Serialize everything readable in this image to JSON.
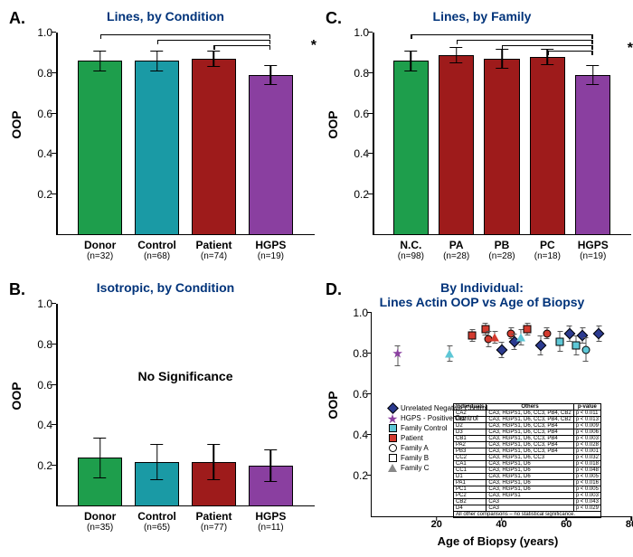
{
  "palette": {
    "donor": "#1e9e4c",
    "control": "#1a9aa5",
    "patient": "#9e1b1b",
    "hgps": "#8a3fa0",
    "title": "#00337a"
  },
  "panelA": {
    "label": "A.",
    "title": "Lines, by Condition",
    "ylabel": "OOP",
    "ylim": [
      0,
      1.0
    ],
    "yticks": [
      0.2,
      0.4,
      0.6,
      0.8,
      1.0
    ],
    "categories": [
      "Donor",
      "Control",
      "Patient",
      "HGPS"
    ],
    "n": [
      32,
      68,
      74,
      19
    ],
    "values": [
      0.86,
      0.86,
      0.87,
      0.79
    ],
    "err": [
      0.05,
      0.05,
      0.04,
      0.05
    ],
    "colors": [
      "#1e9e4c",
      "#1a9aa5",
      "#9e1b1b",
      "#8a3fa0"
    ],
    "sig_star": "*"
  },
  "panelB": {
    "label": "B.",
    "title": "Isotropic, by Condition",
    "ylabel": "OOP",
    "ylim": [
      0,
      1.0
    ],
    "yticks": [
      0.2,
      0.4,
      0.6,
      0.8,
      1.0
    ],
    "categories": [
      "Donor",
      "Control",
      "Patient",
      "HGPS"
    ],
    "n": [
      35,
      65,
      77,
      11
    ],
    "values": [
      0.24,
      0.22,
      0.22,
      0.2
    ],
    "err": [
      0.1,
      0.09,
      0.09,
      0.08
    ],
    "colors": [
      "#1e9e4c",
      "#1a9aa5",
      "#9e1b1b",
      "#8a3fa0"
    ],
    "note": "No Significance"
  },
  "panelC": {
    "label": "C.",
    "title": "Lines, by Family",
    "ylabel": "OOP",
    "ylim": [
      0,
      1.0
    ],
    "yticks": [
      0.2,
      0.4,
      0.6,
      0.8,
      1.0
    ],
    "categories": [
      "N.C.",
      "PA",
      "PB",
      "PC",
      "HGPS"
    ],
    "n": [
      98,
      28,
      28,
      18,
      19
    ],
    "values": [
      0.86,
      0.89,
      0.87,
      0.88,
      0.79
    ],
    "err": [
      0.05,
      0.04,
      0.05,
      0.04,
      0.05
    ],
    "colors": [
      "#1e9e4c",
      "#9e1b1b",
      "#9e1b1b",
      "#9e1b1b",
      "#8a3fa0"
    ],
    "sig_star": "*"
  },
  "panelD": {
    "label": "D.",
    "title_l1": "By Individual:",
    "title_l2": "Lines Actin OOP vs Age of Biopsy",
    "ylabel": "OOP",
    "xlabel": "Age of Biopsy (years)",
    "ylim": [
      0,
      1.0
    ],
    "yticks": [
      0.2,
      0.4,
      0.6,
      0.8,
      1.0
    ],
    "xlim": [
      0,
      80
    ],
    "xticks": [
      20,
      40,
      60,
      80
    ],
    "legend": [
      {
        "shape": "diamond",
        "fill": "#2b3a8f",
        "label": "Unrelated Negative Control"
      },
      {
        "shape": "star",
        "fill": "#8a3fa0",
        "label": "HGPS - Positive Control"
      },
      {
        "shape": "square",
        "fill": "#5ec7d6",
        "label": "Family Control"
      },
      {
        "shape": "square",
        "fill": "#d33b2f",
        "label": "Patient"
      },
      {
        "shape": "circle",
        "fill": "none",
        "label": "Family A"
      },
      {
        "shape": "square",
        "fill": "none",
        "label": "Family B"
      },
      {
        "shape": "triangle",
        "fill": "none",
        "label": "Family C"
      }
    ],
    "points": [
      {
        "x": 8,
        "y": 0.79,
        "e": 0.05,
        "shape": "star",
        "fill": "#8a3fa0"
      },
      {
        "x": 24,
        "y": 0.8,
        "e": 0.04,
        "shape": "triangle",
        "fill": "#5ec7d6"
      },
      {
        "x": 31,
        "y": 0.89,
        "e": 0.03,
        "shape": "square",
        "fill": "#d33b2f"
      },
      {
        "x": 35,
        "y": 0.92,
        "e": 0.03,
        "shape": "square",
        "fill": "#d33b2f"
      },
      {
        "x": 36,
        "y": 0.87,
        "e": 0.04,
        "shape": "circle",
        "fill": "#d33b2f"
      },
      {
        "x": 38,
        "y": 0.88,
        "e": 0.03,
        "shape": "triangle",
        "fill": "#d33b2f"
      },
      {
        "x": 40,
        "y": 0.82,
        "e": 0.04,
        "shape": "diamond",
        "fill": "#2b3a8f"
      },
      {
        "x": 43,
        "y": 0.9,
        "e": 0.03,
        "shape": "circle",
        "fill": "#d33b2f"
      },
      {
        "x": 44,
        "y": 0.86,
        "e": 0.04,
        "shape": "diamond",
        "fill": "#2b3a8f"
      },
      {
        "x": 46,
        "y": 0.88,
        "e": 0.04,
        "shape": "triangle",
        "fill": "#5ec7d6"
      },
      {
        "x": 48,
        "y": 0.92,
        "e": 0.03,
        "shape": "square",
        "fill": "#d33b2f"
      },
      {
        "x": 52,
        "y": 0.84,
        "e": 0.05,
        "shape": "diamond",
        "fill": "#2b3a8f"
      },
      {
        "x": 54,
        "y": 0.9,
        "e": 0.03,
        "shape": "circle",
        "fill": "#d33b2f"
      },
      {
        "x": 58,
        "y": 0.86,
        "e": 0.05,
        "shape": "square",
        "fill": "#5ec7d6"
      },
      {
        "x": 61,
        "y": 0.9,
        "e": 0.04,
        "shape": "diamond",
        "fill": "#2b3a8f"
      },
      {
        "x": 63,
        "y": 0.84,
        "e": 0.05,
        "shape": "square",
        "fill": "#5ec7d6"
      },
      {
        "x": 65,
        "y": 0.89,
        "e": 0.04,
        "shape": "diamond",
        "fill": "#2b3a8f"
      },
      {
        "x": 66,
        "y": 0.82,
        "e": 0.06,
        "shape": "circle",
        "fill": "#5ec7d6"
      },
      {
        "x": 70,
        "y": 0.9,
        "e": 0.04,
        "shape": "diamond",
        "fill": "#2b3a8f"
      }
    ],
    "pvalue_table": {
      "header": [
        "Individuals",
        "Others",
        "p-value"
      ],
      "rows": [
        [
          "CA2",
          "CA3, HGPS1, D6, CC3, PB4, CB2",
          "p < 0.011"
        ],
        [
          "PB2",
          "CA3, HGPS1, D6, CC3, PB4, CB2",
          "p < 0.013"
        ],
        [
          "D2",
          "CA3, HGPS1, D6, CC3, PB4",
          "p < 0.009"
        ],
        [
          "D3",
          "CA3, HGPS1, D6, CC3, PB4",
          "p < 0.006"
        ],
        [
          "CB1",
          "CA3, HGPS1, D6, CC3, PB4",
          "p < 0.003"
        ],
        [
          "PA2",
          "CA3, HGPS1, D6, CC3, PB4",
          "p < 0.028"
        ],
        [
          "PB3",
          "CA3, HGPS1, D6, CC3, PB4",
          "p < 0.001"
        ],
        [
          "CC2",
          "CA3, HGPS1, D6, CC3",
          "p < 0.032"
        ],
        [
          "CA1",
          "CA3, HGPS1, D6",
          "p < 0.018"
        ],
        [
          "CC1",
          "CA3, HGPS1, D6",
          "p < 0.048"
        ],
        [
          "D1",
          "CA3, HGPS1, D6",
          "p < 0.005"
        ],
        [
          "PA1",
          "CA3, HGPS1, D6",
          "p < 0.016"
        ],
        [
          "PC1",
          "CA3, HGPS1, D6",
          "p < 0.005"
        ],
        [
          "PC2",
          "CA3, HGPS1",
          "p < 0.003"
        ],
        [
          "CB2",
          "CA3",
          "p < 0.043"
        ],
        [
          "D4",
          "CA3",
          "p < 0.029"
        ]
      ],
      "footer": "All other comparisons – no statistical significance."
    }
  }
}
